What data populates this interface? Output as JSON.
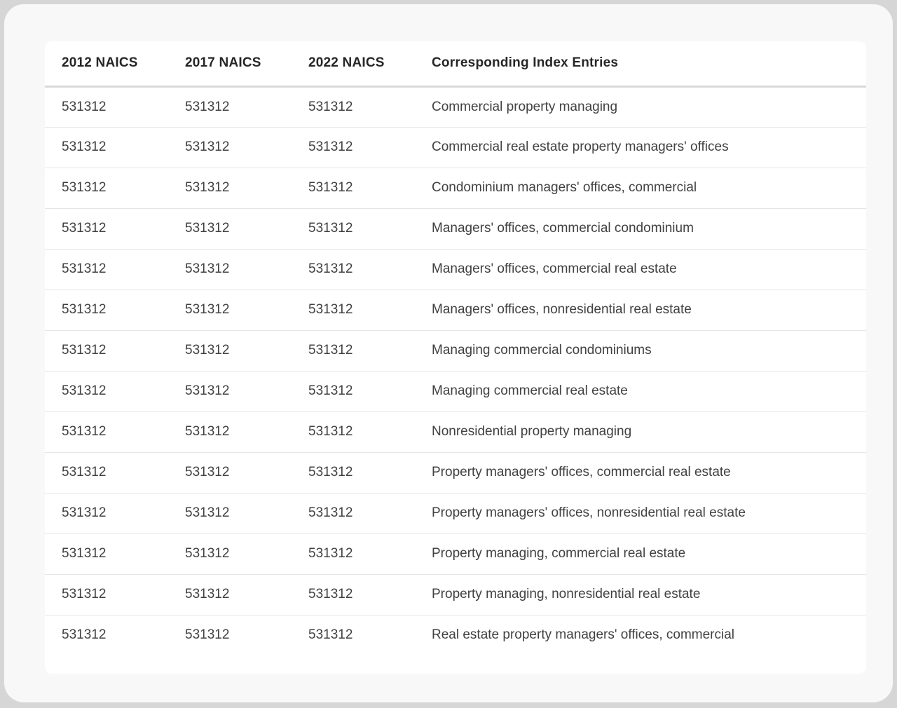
{
  "page": {
    "background_color": "#d6d6d6",
    "outer_card_color": "#f8f8f9",
    "table_card_color": "#ffffff"
  },
  "table": {
    "headers": [
      "2012 NAICS",
      "2017 NAICS",
      "2022 NAICS",
      "Corresponding Index Entries"
    ],
    "rows": [
      [
        "531312",
        "531312",
        "531312",
        "Commercial property managing"
      ],
      [
        "531312",
        "531312",
        "531312",
        "Commercial real estate property managers' offices"
      ],
      [
        "531312",
        "531312",
        "531312",
        "Condominium managers' offices, commercial"
      ],
      [
        "531312",
        "531312",
        "531312",
        "Managers' offices, commercial condominium"
      ],
      [
        "531312",
        "531312",
        "531312",
        "Managers' offices, commercial real estate"
      ],
      [
        "531312",
        "531312",
        "531312",
        "Managers' offices, nonresidential real estate"
      ],
      [
        "531312",
        "531312",
        "531312",
        "Managing commercial condominiums"
      ],
      [
        "531312",
        "531312",
        "531312",
        "Managing commercial real estate"
      ],
      [
        "531312",
        "531312",
        "531312",
        "Nonresidential property managing"
      ],
      [
        "531312",
        "531312",
        "531312",
        "Property managers' offices, commercial real estate"
      ],
      [
        "531312",
        "531312",
        "531312",
        "Property managers' offices, nonresidential real estate"
      ],
      [
        "531312",
        "531312",
        "531312",
        "Property managing, commercial real estate"
      ],
      [
        "531312",
        "531312",
        "531312",
        "Property managing, nonresidential real estate"
      ],
      [
        "531312",
        "531312",
        "531312",
        "Real estate property managers' offices, commercial"
      ]
    ]
  }
}
